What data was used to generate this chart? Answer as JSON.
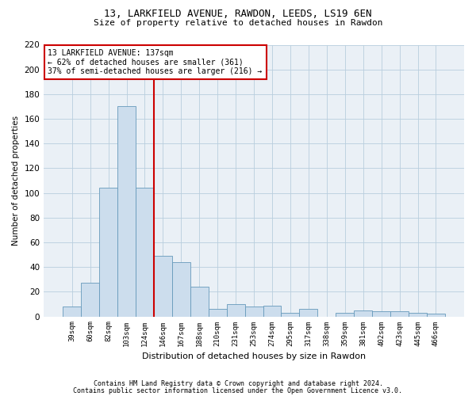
{
  "title1": "13, LARKFIELD AVENUE, RAWDON, LEEDS, LS19 6EN",
  "title2": "Size of property relative to detached houses in Rawdon",
  "xlabel": "Distribution of detached houses by size in Rawdon",
  "ylabel": "Number of detached properties",
  "bar_color": "#ccdded",
  "bar_edge_color": "#6699bb",
  "categories": [
    "39sqm",
    "60sqm",
    "82sqm",
    "103sqm",
    "124sqm",
    "146sqm",
    "167sqm",
    "188sqm",
    "210sqm",
    "231sqm",
    "253sqm",
    "274sqm",
    "295sqm",
    "317sqm",
    "338sqm",
    "359sqm",
    "381sqm",
    "402sqm",
    "423sqm",
    "445sqm",
    "466sqm"
  ],
  "values": [
    8,
    27,
    104,
    170,
    104,
    49,
    44,
    24,
    6,
    10,
    8,
    9,
    3,
    6,
    0,
    3,
    5,
    4,
    4,
    3,
    2
  ],
  "ylim": [
    0,
    220
  ],
  "yticks": [
    0,
    20,
    40,
    60,
    80,
    100,
    120,
    140,
    160,
    180,
    200,
    220
  ],
  "annotation_text": "13 LARKFIELD AVENUE: 137sqm\n← 62% of detached houses are smaller (361)\n37% of semi-detached houses are larger (216) →",
  "footer1": "Contains HM Land Registry data © Crown copyright and database right 2024.",
  "footer2": "Contains public sector information licensed under the Open Government Licence v3.0.",
  "vline_color": "#cc0000",
  "annotation_box_edge": "#cc0000",
  "bg_color": "#eaf0f6",
  "grid_color": "#b8cede"
}
